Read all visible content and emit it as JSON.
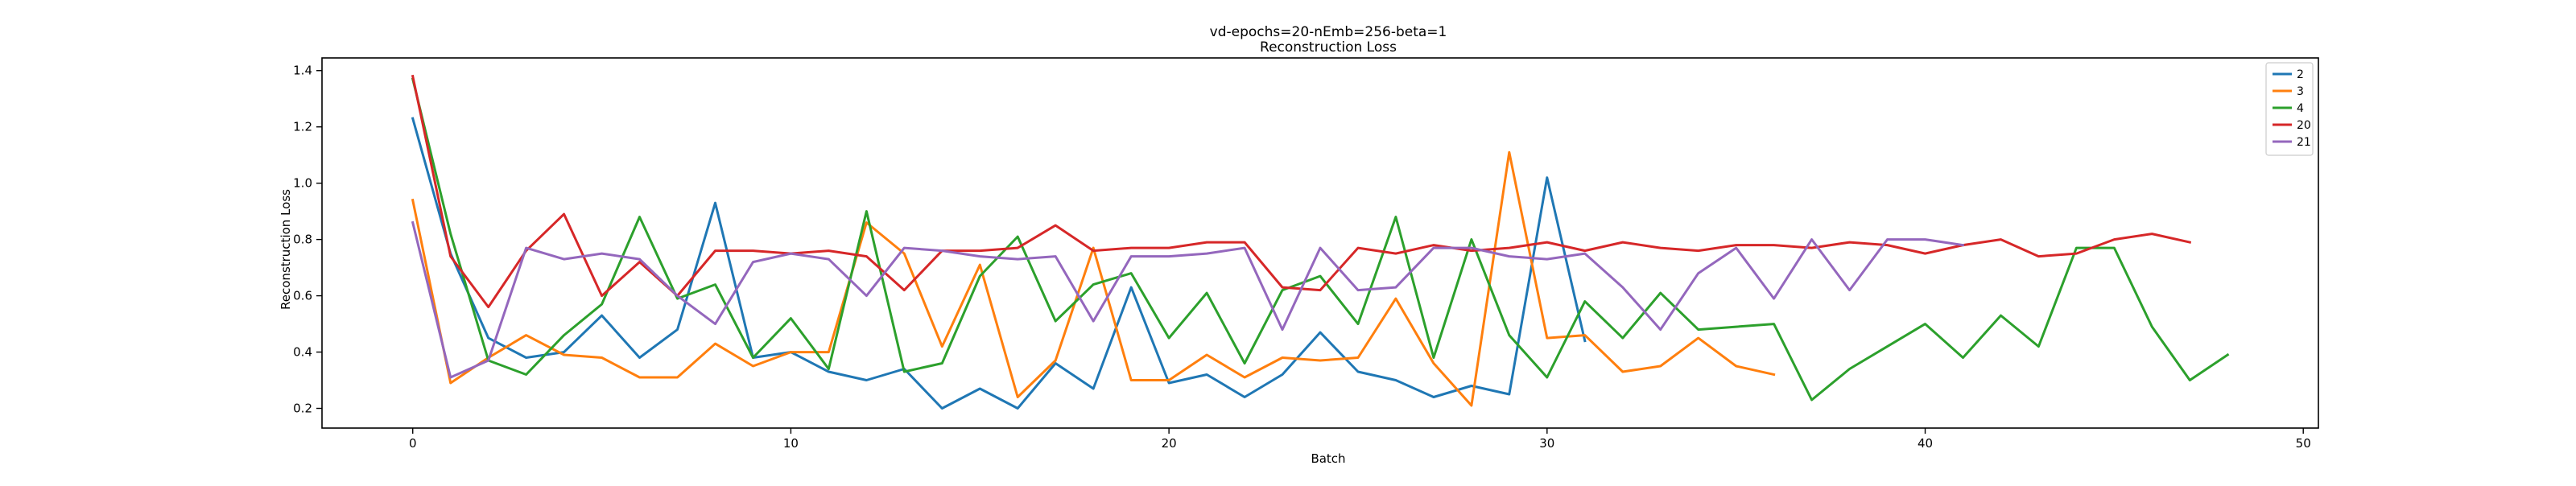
{
  "chart_data": {
    "type": "line",
    "title": "vd-epochs=20-nEmb=256-beta=1",
    "subtitle": "Reconstruction Loss",
    "xlabel": "Batch",
    "ylabel": "Reconstruction Loss",
    "xlim": [
      -2.4,
      50.4
    ],
    "ylim": [
      0.13,
      1.445
    ],
    "xticks": [
      0,
      10,
      20,
      30,
      40,
      50
    ],
    "yticks": [
      0.2,
      0.4,
      0.6,
      0.8,
      1.0,
      1.2,
      1.4
    ],
    "ytick_labels": [
      "0.2",
      "0.4",
      "0.6",
      "0.8",
      "1.0",
      "1.2",
      "1.4"
    ],
    "grid": false,
    "legend_position": "top-right",
    "series": [
      {
        "name": "2",
        "color": "#1f77b4",
        "x": [
          0,
          1,
          2,
          3,
          4,
          5,
          6,
          7,
          8,
          9,
          10,
          11,
          12,
          13,
          14,
          15,
          16,
          17,
          18,
          19,
          20,
          21,
          22,
          23,
          24,
          25,
          26,
          27,
          28,
          29,
          30,
          31
        ],
        "values": [
          1.23,
          0.75,
          0.45,
          0.38,
          0.4,
          0.53,
          0.38,
          0.48,
          0.93,
          0.38,
          0.4,
          0.33,
          0.3,
          0.34,
          0.2,
          0.27,
          0.2,
          0.36,
          0.27,
          0.63,
          0.29,
          0.32,
          0.24,
          0.32,
          0.47,
          0.33,
          0.3,
          0.24,
          0.28,
          0.25,
          1.02,
          0.44
        ]
      },
      {
        "name": "3",
        "color": "#ff7f0e",
        "x": [
          0,
          1,
          2,
          3,
          4,
          5,
          6,
          7,
          8,
          9,
          10,
          11,
          12,
          13,
          14,
          15,
          16,
          17,
          18,
          19,
          20,
          21,
          22,
          23,
          24,
          25,
          26,
          27,
          28,
          29,
          30,
          31,
          32,
          33,
          34,
          35,
          36
        ],
        "values": [
          0.94,
          0.29,
          0.38,
          0.46,
          0.39,
          0.38,
          0.31,
          0.31,
          0.43,
          0.35,
          0.4,
          0.4,
          0.86,
          0.75,
          0.42,
          0.71,
          0.24,
          0.37,
          0.77,
          0.3,
          0.3,
          0.39,
          0.31,
          0.38,
          0.37,
          0.38,
          0.59,
          0.36,
          0.21,
          1.11,
          0.45,
          0.46,
          0.33,
          0.35,
          0.45,
          0.35,
          0.32
        ]
      },
      {
        "name": "4",
        "color": "#2ca02c",
        "x": [
          0,
          1,
          2,
          3,
          4,
          5,
          6,
          7,
          8,
          9,
          10,
          11,
          12,
          13,
          14,
          15,
          16,
          17,
          18,
          19,
          20,
          21,
          22,
          23,
          24,
          25,
          26,
          27,
          28,
          29,
          30,
          31,
          32,
          33,
          34,
          35,
          36,
          37,
          38,
          39,
          40,
          41,
          42,
          43,
          44,
          45,
          46,
          47,
          48
        ],
        "values": [
          1.37,
          0.82,
          0.37,
          0.32,
          0.46,
          0.57,
          0.88,
          0.59,
          0.64,
          0.38,
          0.52,
          0.34,
          0.9,
          0.33,
          0.36,
          0.67,
          0.81,
          0.51,
          0.64,
          0.68,
          0.45,
          0.61,
          0.36,
          0.62,
          0.67,
          0.5,
          0.88,
          0.38,
          0.8,
          0.46,
          0.31,
          0.58,
          0.45,
          0.61,
          0.48,
          0.49,
          0.5,
          0.23,
          0.34,
          0.42,
          0.5,
          0.38,
          0.53,
          0.42,
          0.77,
          0.77,
          0.49,
          0.3,
          0.39
        ]
      },
      {
        "name": "20",
        "color": "#d62728",
        "x": [
          0,
          1,
          2,
          3,
          4,
          5,
          6,
          7,
          8,
          9,
          10,
          11,
          12,
          13,
          14,
          15,
          16,
          17,
          18,
          19,
          20,
          21,
          22,
          23,
          24,
          25,
          26,
          27,
          28,
          29,
          30,
          31,
          32,
          33,
          34,
          35,
          36,
          37,
          38,
          39,
          40,
          41,
          42,
          43,
          44,
          45,
          46,
          47
        ],
        "values": [
          1.38,
          0.74,
          0.56,
          0.76,
          0.89,
          0.6,
          0.72,
          0.6,
          0.76,
          0.76,
          0.75,
          0.76,
          0.74,
          0.62,
          0.76,
          0.76,
          0.77,
          0.85,
          0.76,
          0.77,
          0.77,
          0.79,
          0.79,
          0.63,
          0.62,
          0.77,
          0.75,
          0.78,
          0.76,
          0.77,
          0.79,
          0.76,
          0.79,
          0.77,
          0.76,
          0.78,
          0.78,
          0.77,
          0.79,
          0.78,
          0.75,
          0.78,
          0.8,
          0.74,
          0.75,
          0.8,
          0.82,
          0.79
        ]
      },
      {
        "name": "21",
        "color": "#9467bd",
        "x": [
          0,
          1,
          2,
          3,
          4,
          5,
          6,
          7,
          8,
          9,
          10,
          11,
          12,
          13,
          14,
          15,
          16,
          17,
          18,
          19,
          20,
          21,
          22,
          23,
          24,
          25,
          26,
          27,
          28,
          29,
          30,
          31,
          32,
          33,
          34,
          35,
          36,
          37,
          38,
          39,
          40,
          41
        ],
        "values": [
          0.86,
          0.31,
          0.37,
          0.77,
          0.73,
          0.75,
          0.73,
          0.6,
          0.5,
          0.72,
          0.75,
          0.73,
          0.6,
          0.77,
          0.76,
          0.74,
          0.73,
          0.74,
          0.51,
          0.74,
          0.74,
          0.75,
          0.77,
          0.48,
          0.77,
          0.62,
          0.63,
          0.77,
          0.77,
          0.74,
          0.73,
          0.75,
          0.63,
          0.48,
          0.68,
          0.77,
          0.59,
          0.8,
          0.62,
          0.8,
          0.8,
          0.78
        ]
      }
    ]
  }
}
